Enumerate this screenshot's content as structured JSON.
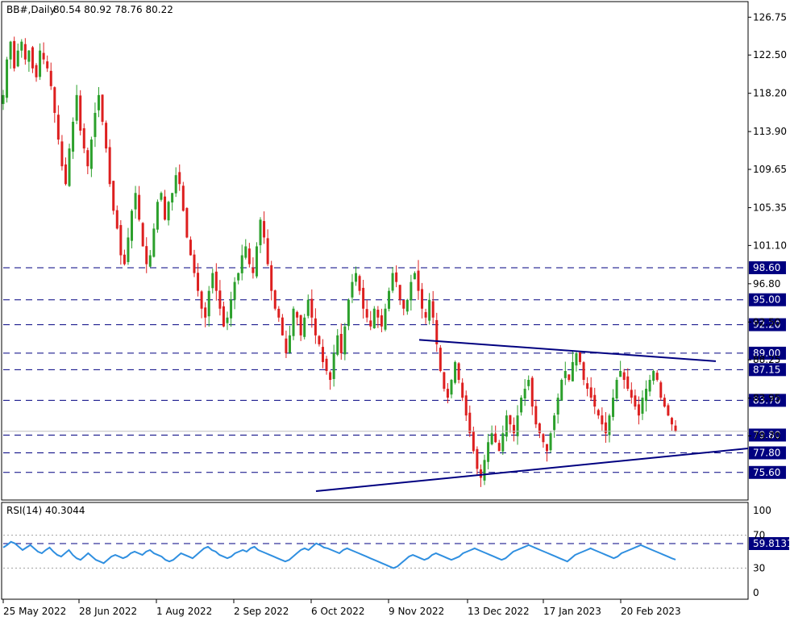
{
  "header": {
    "symbol": "BB#,Daily",
    "ohlc": "80.54 80.92 78.76 80.22"
  },
  "colors": {
    "bull": "#2ca02c",
    "bear": "#dd1f1f",
    "level_line": "#000080",
    "trendline": "#000080",
    "rsi_line": "#2f8fe0",
    "label_bg": "#000080",
    "label_text": "#ffffff"
  },
  "chart_data": [
    {
      "type": "candlestick",
      "title": "",
      "price_axis": {
        "range": [
          72.5,
          128.5
        ],
        "tick_labels": [
          "126.75",
          "122.50",
          "118.20",
          "113.90",
          "109.65",
          "105.35",
          "101.10",
          "96.80",
          "92.50",
          "88.25",
          "83.95",
          "79.70"
        ],
        "tick_values": [
          126.75,
          122.5,
          118.2,
          113.9,
          109.65,
          105.35,
          101.1,
          96.8,
          92.5,
          88.25,
          83.95,
          79.7
        ]
      },
      "date_axis": {
        "labels": [
          "25 May 2022",
          "28 Jun 2022",
          "1 Aug 2022",
          "2 Sep 2022",
          "6 Oct 2022",
          "9 Nov 2022",
          "13 Dec 2022",
          "17 Jan 2023",
          "20 Feb 2023"
        ]
      },
      "levels": [
        {
          "label": "98.60",
          "value": 98.6
        },
        {
          "label": "95.00",
          "value": 95.0
        },
        {
          "label": "92.20",
          "value": 92.2
        },
        {
          "label": "89.00",
          "value": 89.0
        },
        {
          "label": "87.15",
          "value": 87.15
        },
        {
          "label": "83.70",
          "value": 83.7
        },
        {
          "label": "79.80",
          "value": 79.8
        },
        {
          "label": "77.80",
          "value": 77.8
        },
        {
          "label": "75.60",
          "value": 75.6
        }
      ],
      "trendlines": [
        {
          "from": {
            "date": "9 Nov 2022",
            "value": 90.5
          },
          "to": {
            "date": "Mar 2023",
            "value": 88.1
          }
        },
        {
          "from": {
            "date": "Nov 2022",
            "value": 73.5
          },
          "to": {
            "date": "Mar 2023",
            "value": 78.3
          }
        }
      ],
      "last_close": 80.22,
      "close_series": [
        118,
        122,
        124,
        121,
        123,
        124,
        122,
        123,
        121,
        120,
        123,
        122,
        121,
        119,
        116,
        113,
        110,
        108,
        112,
        115,
        118,
        114,
        112,
        110,
        113,
        116,
        118,
        115,
        112,
        108,
        105,
        103,
        100,
        99,
        102,
        105,
        107,
        104,
        101,
        99,
        100,
        103,
        106,
        107,
        104,
        106,
        107,
        109,
        108,
        105,
        102,
        100,
        98,
        96,
        94,
        93,
        96,
        98,
        96,
        94,
        92,
        93,
        95,
        97,
        98,
        100,
        101,
        99,
        98,
        101,
        104,
        102,
        99,
        96,
        94,
        93,
        91,
        89,
        91,
        94,
        93,
        91,
        93,
        95,
        93,
        91,
        90,
        88,
        87,
        86,
        89,
        91,
        89,
        92,
        95,
        97,
        98,
        96,
        94,
        93,
        92,
        94,
        93,
        92,
        94,
        96,
        98,
        97,
        95,
        94,
        95,
        97,
        98,
        96,
        94,
        93,
        95,
        93,
        90,
        87,
        85,
        84,
        86,
        88,
        86,
        84,
        82,
        80,
        78,
        76,
        75,
        77,
        79,
        80,
        79,
        78,
        80,
        82,
        81,
        80,
        82,
        84,
        85,
        86,
        83,
        81,
        80,
        79,
        78,
        80,
        82,
        84,
        86,
        87,
        86,
        88,
        89,
        88,
        86,
        85,
        84,
        83,
        82,
        81,
        80,
        82,
        84,
        86,
        87,
        86,
        85,
        84,
        83,
        82,
        84,
        85,
        86,
        87,
        86,
        84,
        83,
        82,
        81,
        80.22
      ]
    },
    {
      "type": "line",
      "title": "RSI(14) 40.3044",
      "series_name": "RSI(14)",
      "value_label": "59.8131",
      "y_axis": {
        "range": [
          0,
          100
        ],
        "tick_labels": [
          "100",
          "70",
          "30",
          "0"
        ],
        "tick_values": [
          100,
          70,
          30,
          0
        ]
      },
      "last_value": 40.3044,
      "ref_level": 59.8131,
      "values": [
        55,
        58,
        62,
        60,
        56,
        52,
        55,
        58,
        54,
        50,
        48,
        52,
        55,
        50,
        46,
        44,
        48,
        52,
        46,
        42,
        40,
        44,
        48,
        44,
        40,
        38,
        36,
        40,
        44,
        46,
        44,
        42,
        44,
        48,
        50,
        48,
        46,
        50,
        52,
        48,
        46,
        44,
        40,
        38,
        40,
        44,
        48,
        46,
        44,
        42,
        46,
        50,
        54,
        56,
        52,
        50,
        46,
        44,
        42,
        44,
        48,
        50,
        52,
        50,
        54,
        56,
        52,
        50,
        48,
        46,
        44,
        42,
        40,
        38,
        40,
        44,
        48,
        52,
        54,
        52,
        56,
        60,
        58,
        55,
        54,
        52,
        50,
        48,
        52,
        54,
        52,
        50,
        48,
        46,
        44,
        42,
        40,
        38,
        36,
        34,
        32,
        30,
        32,
        36,
        40,
        44,
        46,
        44,
        42,
        40,
        42,
        46,
        48,
        46,
        44,
        42,
        40,
        42,
        44,
        48,
        50,
        52,
        54,
        52,
        50,
        48,
        46,
        44,
        42,
        40,
        42,
        46,
        50,
        52,
        54,
        56,
        58,
        56,
        54,
        52,
        50,
        48,
        46,
        44,
        42,
        40,
        38,
        42,
        46,
        48,
        50,
        52,
        54,
        52,
        50,
        48,
        46,
        44,
        42,
        44,
        48,
        50,
        52,
        54,
        56,
        58,
        56,
        54,
        52,
        50,
        48,
        46,
        44,
        42,
        40.3044
      ]
    }
  ]
}
